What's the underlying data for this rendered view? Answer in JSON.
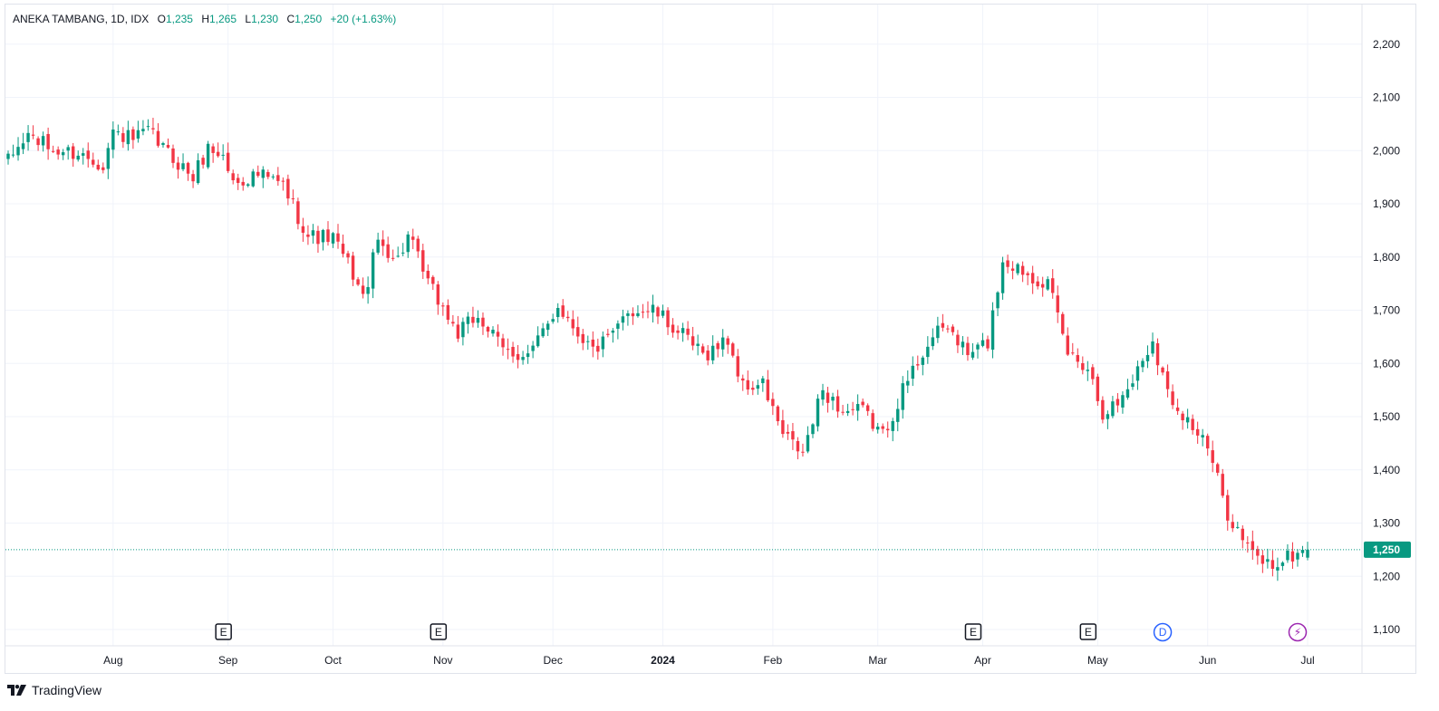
{
  "legend": {
    "symbol": "ANEKA TAMBANG, 1D, IDX",
    "o_label": "O",
    "o_value": "1,235",
    "h_label": "H",
    "h_value": "1,265",
    "l_label": "L",
    "l_value": "1,230",
    "c_label": "C",
    "c_value": "1,250",
    "change": "+20 (+1.63%)"
  },
  "brand": {
    "name": "TradingView",
    "icon": "tradingview-logo-icon"
  },
  "colors": {
    "up": "#089981",
    "down": "#f23645",
    "grid": "#f0f3fa",
    "price_line": "#089981",
    "dividend": "#2962ff",
    "split": "#9c27b0"
  },
  "chart_data": {
    "type": "candlestick",
    "title": "ANEKA TAMBANG, 1D, IDX",
    "ylim": [
      1080,
      2260
    ],
    "y_ticks": [
      "2,200",
      "2,100",
      "2,000",
      "1,900",
      "1,800",
      "1,700",
      "1,600",
      "1,500",
      "1,400",
      "1,300",
      "1,200",
      "1,100"
    ],
    "y_tick_values": [
      2200,
      2100,
      2000,
      1900,
      1800,
      1700,
      1600,
      1500,
      1400,
      1300,
      1200,
      1100
    ],
    "x_labels": [
      {
        "label": "Aug",
        "date": "2023-08-01",
        "bold": false
      },
      {
        "label": "Sep",
        "date": "2023-09-01",
        "bold": false
      },
      {
        "label": "Oct",
        "date": "2023-10-02",
        "bold": false
      },
      {
        "label": "Nov",
        "date": "2023-11-01",
        "bold": false
      },
      {
        "label": "Dec",
        "date": "2023-12-01",
        "bold": false
      },
      {
        "label": "2024",
        "date": "2024-01-02",
        "bold": true
      },
      {
        "label": "Feb",
        "date": "2024-02-01",
        "bold": false
      },
      {
        "label": "Mar",
        "date": "2024-03-01",
        "bold": false
      },
      {
        "label": "Apr",
        "date": "2024-04-01",
        "bold": false
      },
      {
        "label": "May",
        "date": "2024-05-02",
        "bold": false
      },
      {
        "label": "Jun",
        "date": "2024-06-03",
        "bold": false
      },
      {
        "label": "Jul",
        "date": "2024-07-01",
        "bold": false
      }
    ],
    "last_price": {
      "value": 1250,
      "label": "1,250"
    },
    "events": [
      {
        "type": "earnings",
        "label": "E",
        "date": "2023-08-31"
      },
      {
        "type": "earnings",
        "label": "E",
        "date": "2023-10-31"
      },
      {
        "type": "earnings",
        "label": "E",
        "date": "2024-03-28"
      },
      {
        "type": "earnings",
        "label": "E",
        "date": "2024-04-30"
      },
      {
        "type": "dividend",
        "label": "D",
        "date": "2024-05-21"
      },
      {
        "type": "split",
        "label": "⚡",
        "date": "2024-06-27"
      }
    ],
    "anchors": [
      [
        "2023-07-03",
        1980
      ],
      [
        "2023-07-07",
        2030
      ],
      [
        "2023-07-14",
        2000
      ],
      [
        "2023-07-21",
        1995
      ],
      [
        "2023-07-28",
        1975
      ],
      [
        "2023-08-01",
        2035
      ],
      [
        "2023-08-07",
        2020
      ],
      [
        "2023-08-10",
        2035
      ],
      [
        "2023-08-16",
        1995
      ],
      [
        "2023-08-23",
        1950
      ],
      [
        "2023-08-28",
        2005
      ],
      [
        "2023-08-31",
        1990
      ],
      [
        "2023-09-04",
        1940
      ],
      [
        "2023-09-11",
        1955
      ],
      [
        "2023-09-18",
        1935
      ],
      [
        "2023-09-25",
        1840
      ],
      [
        "2023-10-02",
        1835
      ],
      [
        "2023-10-06",
        1770
      ],
      [
        "2023-10-10",
        1720
      ],
      [
        "2023-10-13",
        1830
      ],
      [
        "2023-10-19",
        1795
      ],
      [
        "2023-10-23",
        1840
      ],
      [
        "2023-10-27",
        1750
      ],
      [
        "2023-10-31",
        1720
      ],
      [
        "2023-11-06",
        1655
      ],
      [
        "2023-11-10",
        1690
      ],
      [
        "2023-11-17",
        1625
      ],
      [
        "2023-11-24",
        1615
      ],
      [
        "2023-11-28",
        1640
      ],
      [
        "2023-12-04",
        1710
      ],
      [
        "2023-12-08",
        1660
      ],
      [
        "2023-12-13",
        1625
      ],
      [
        "2023-12-19",
        1650
      ],
      [
        "2023-12-22",
        1700
      ],
      [
        "2023-12-29",
        1700
      ],
      [
        "2024-01-05",
        1660
      ],
      [
        "2024-01-12",
        1615
      ],
      [
        "2024-01-19",
        1645
      ],
      [
        "2024-01-24",
        1555
      ],
      [
        "2024-01-30",
        1560
      ],
      [
        "2024-02-05",
        1465
      ],
      [
        "2024-02-09",
        1430
      ],
      [
        "2024-02-15",
        1550
      ],
      [
        "2024-02-21",
        1510
      ],
      [
        "2024-02-27",
        1510
      ],
      [
        "2024-03-04",
        1465
      ],
      [
        "2024-03-08",
        1550
      ],
      [
        "2024-03-15",
        1640
      ],
      [
        "2024-03-21",
        1670
      ],
      [
        "2024-03-27",
        1615
      ],
      [
        "2024-04-02",
        1640
      ],
      [
        "2024-04-05",
        1795
      ],
      [
        "2024-04-18",
        1750
      ],
      [
        "2024-04-24",
        1620
      ],
      [
        "2024-04-30",
        1595
      ],
      [
        "2024-05-03",
        1510
      ],
      [
        "2024-05-08",
        1525
      ],
      [
        "2024-05-13",
        1570
      ],
      [
        "2024-05-17",
        1645
      ],
      [
        "2024-05-22",
        1545
      ],
      [
        "2024-05-28",
        1495
      ],
      [
        "2024-06-03",
        1440
      ],
      [
        "2024-06-07",
        1320
      ],
      [
        "2024-06-12",
        1270
      ],
      [
        "2024-06-14",
        1240
      ],
      [
        "2024-06-20",
        1220
      ],
      [
        "2024-06-25",
        1235
      ],
      [
        "2024-07-01",
        1250
      ]
    ]
  }
}
